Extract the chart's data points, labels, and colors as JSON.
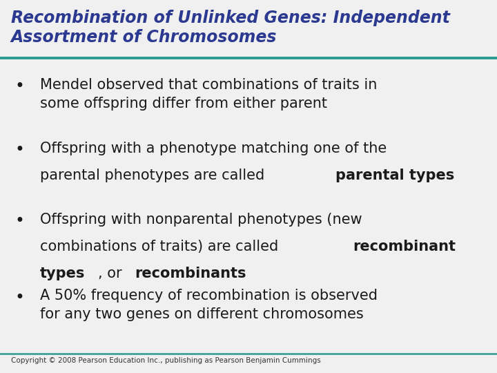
{
  "title_line1": "Recombination of Unlinked Genes: Independent",
  "title_line2": "Assortment of Chromosomes",
  "title_color": "#2B3990",
  "title_fontsize": 17,
  "background_color": "#F0F0F0",
  "line_color": "#2A9B8E",
  "bullet_color": "#1A1A1A",
  "bullet_fontsize": 15,
  "copyright": "Copyright © 2008 Pearson Education Inc., publishing as Pearson Benjamin Cummings",
  "copyright_fontsize": 7.5,
  "copyright_color": "#333333"
}
